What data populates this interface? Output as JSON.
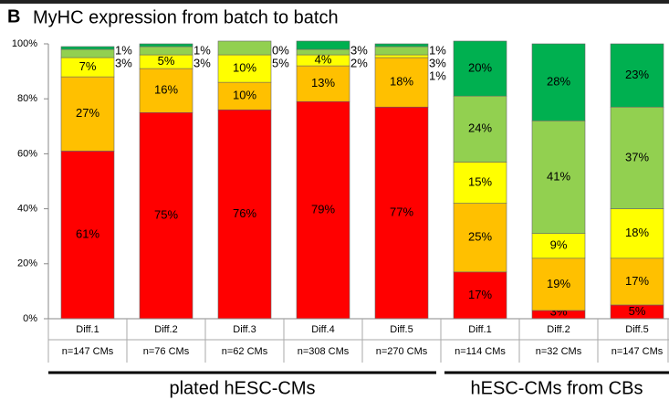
{
  "panel_label": "B",
  "chart_data": {
    "type": "stacked-bar",
    "title": "MyHC expression from batch to batch",
    "categories": [
      "Diff.1",
      "Diff.2",
      "Diff.3",
      "Diff.4",
      "Diff.5",
      "Diff.1",
      "Diff.2",
      "Diff.5"
    ],
    "sample_sizes": [
      "n=147 CMs",
      "n=76 CMs",
      "n=62 CMs",
      "n=308 CMs",
      "n=270 CMs",
      "n=114 CMs",
      "n=32 CMs",
      "n=147 CMs"
    ],
    "groups": [
      {
        "label": "plated hESC-CMs",
        "first": 0,
        "last": 4
      },
      {
        "label": "hESC-CMs from CBs",
        "first": 5,
        "last": 7
      }
    ],
    "series": [
      {
        "color": "#ff0000",
        "values": [
          61,
          75,
          76,
          79,
          77,
          17,
          3,
          5
        ],
        "value_labels": [
          "61%",
          "75%",
          "76%",
          "79%",
          "77%",
          "17%",
          "3%",
          "5%"
        ]
      },
      {
        "color": "#ffc000",
        "values": [
          27,
          16,
          10,
          13,
          18,
          25,
          19,
          17
        ],
        "value_labels": [
          "27%",
          "16%",
          "10%",
          "13%",
          "18%",
          "25%",
          "19%",
          "17%"
        ]
      },
      {
        "color": "#ffff00",
        "values": [
          7,
          5,
          10,
          4,
          1,
          15,
          9,
          18
        ],
        "value_labels": [
          "7%",
          "5%",
          "10%",
          "4%",
          "1%",
          "15%",
          "9%",
          "18%"
        ]
      },
      {
        "color": "#92d050",
        "values": [
          3,
          3,
          5,
          2,
          3,
          24,
          41,
          37
        ],
        "value_labels": [
          "3%",
          "3%",
          "5%",
          "2%",
          "3%",
          "24%",
          "41%",
          "37%"
        ]
      },
      {
        "color": "#00b050",
        "values": [
          1,
          1,
          0,
          3,
          1,
          20,
          28,
          23
        ],
        "value_labels": [
          "1%",
          "1%",
          "0%",
          "3%",
          "1%",
          "20%",
          "28%",
          "23%"
        ]
      }
    ],
    "ylim": [
      0,
      100
    ],
    "yticks": [
      {
        "value": 0,
        "label": "0%"
      },
      {
        "value": 20,
        "label": "20%"
      },
      {
        "value": 40,
        "label": "40%"
      },
      {
        "value": 60,
        "label": "60%"
      },
      {
        "value": 80,
        "label": "80%"
      },
      {
        "value": 100,
        "label": "100%"
      }
    ],
    "grid": false
  }
}
